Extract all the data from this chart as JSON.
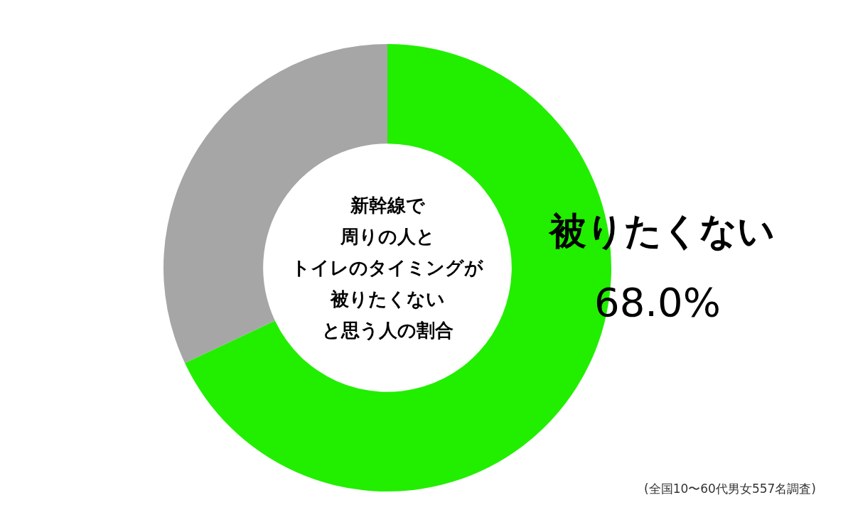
{
  "chart_data": {
    "type": "donut",
    "categories": [
      "被りたくない",
      null
    ],
    "values": [
      68.0,
      32.0
    ],
    "colors": [
      "#22ee00",
      "#a6a6a6"
    ],
    "value_labels": [
      "68.0%",
      null
    ],
    "legend": false,
    "annotations": [
      "新幹線で",
      "周りの人と",
      "トイレのタイミングが",
      "被りたくない",
      "と思う人の割合",
      "(全国10〜60代男女557名調査)"
    ]
  }
}
